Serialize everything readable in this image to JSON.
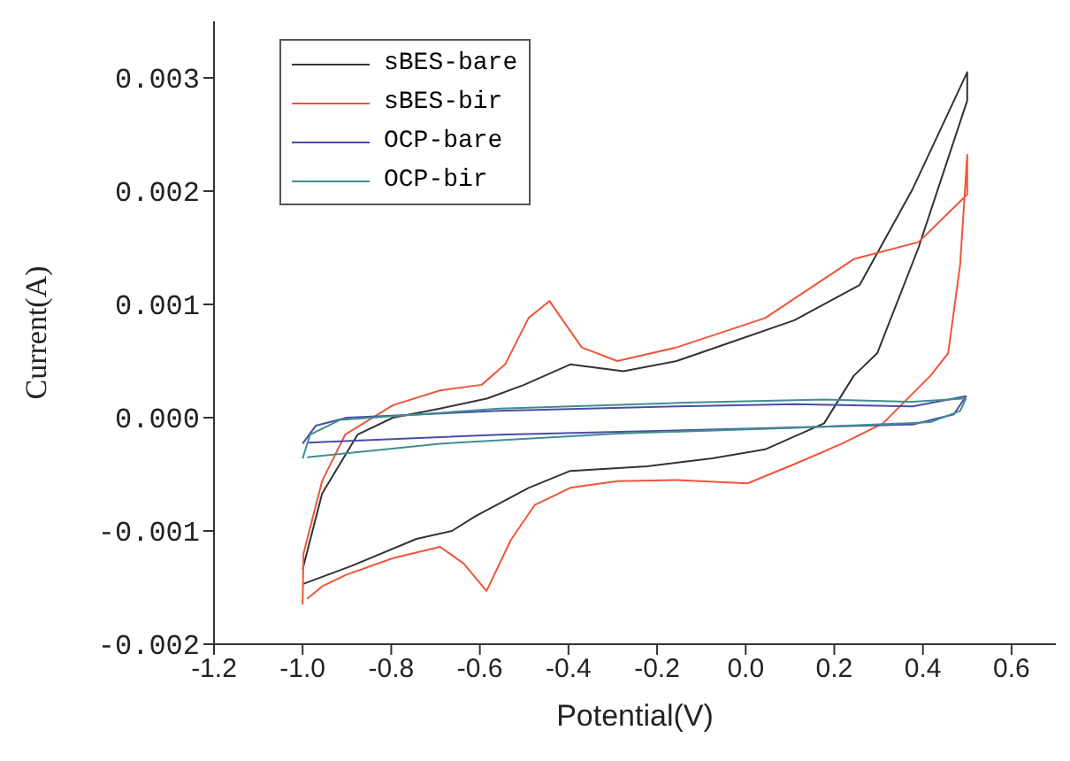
{
  "chart_data": {
    "type": "line",
    "xlabel": "Potential(V)",
    "ylabel": "Current(A)",
    "xlim": [
      -1.2,
      0.7
    ],
    "ylim": [
      -0.002,
      0.0035
    ],
    "xticks": [
      -1.2,
      {
        "value": -1,
        "label": "-1.0"
      },
      -0.8,
      -0.6,
      -0.4,
      -0.2,
      {
        "value": 0,
        "label": "0.0"
      },
      0.2,
      0.4,
      0.6
    ],
    "yticks": [
      -0.002,
      -0.001,
      {
        "value": 0,
        "label": "0.000"
      },
      0.001,
      0.002,
      0.003
    ],
    "grid": false,
    "legend": "top left",
    "marker": "none",
    "line_style": "solid",
    "series": [
      {
        "name": "sBES-bare",
        "color": "#333333",
        "x": [
          -1.0,
          -0.956,
          -0.876,
          -0.796,
          -0.69,
          -0.583,
          -0.5,
          -0.396,
          -0.276,
          -0.156,
          -0.023,
          0.11,
          0.257,
          0.377,
          0.5,
          0.5,
          0.39,
          0.297,
          0.244,
          0.177,
          0.044,
          -0.076,
          -0.223,
          -0.396,
          -0.49,
          -0.61,
          -0.663,
          -0.743,
          -0.89,
          -1.0
        ],
        "values": [
          -0.00134,
          -0.00067,
          -0.00015,
          0.0,
          8e-05,
          0.00017,
          0.00029,
          0.00047,
          0.00041,
          0.0005,
          0.00068,
          0.00086,
          0.00117,
          0.00202,
          0.00305,
          0.0028,
          0.0015,
          0.00057,
          0.00037,
          -5e-05,
          -0.00028,
          -0.00036,
          -0.00043,
          -0.00047,
          -0.00062,
          -0.00087,
          -0.001,
          -0.00107,
          -0.00131,
          -0.00147
        ]
      },
      {
        "name": "sBES-bir",
        "color": "#f0553a",
        "x": [
          -1.0,
          -0.998,
          -0.956,
          -0.904,
          -0.796,
          -0.69,
          -0.596,
          -0.543,
          -0.49,
          -0.443,
          -0.37,
          -0.29,
          -0.156,
          0.044,
          0.244,
          0.39,
          0.5,
          0.5,
          0.484,
          0.457,
          0.417,
          0.31,
          0.217,
          0.11,
          0.004,
          -0.156,
          -0.29,
          -0.396,
          -0.476,
          -0.53,
          -0.585,
          -0.636,
          -0.69,
          -0.796,
          -0.903,
          -0.956,
          -0.99
        ],
        "values": [
          -0.00165,
          -0.0012,
          -0.00056,
          -0.00015,
          0.00011,
          0.00024,
          0.00029,
          0.00047,
          0.00088,
          0.00103,
          0.00062,
          0.0005,
          0.00062,
          0.00088,
          0.0014,
          0.00155,
          0.00197,
          0.00232,
          0.00135,
          0.00057,
          0.00037,
          -5e-05,
          -0.00023,
          -0.00041,
          -0.00058,
          -0.00055,
          -0.00056,
          -0.00062,
          -0.00077,
          -0.00108,
          -0.00153,
          -0.00129,
          -0.00114,
          -0.00124,
          -0.00139,
          -0.00149,
          -0.0016
        ]
      },
      {
        "name": "OCP-bare",
        "color": "#4c4ca8",
        "x": [
          -1.0,
          -0.97,
          -0.9,
          -0.556,
          -0.156,
          0.11,
          0.377,
          0.497,
          0.47,
          0.377,
          -0.023,
          -0.556,
          -0.99
        ],
        "values": [
          -0.00023,
          -7e-05,
          0.0,
          6e-05,
          0.0001,
          0.00012,
          0.0001,
          0.00019,
          3e-05,
          -6e-05,
          -0.0001,
          -0.00015,
          -0.00022
        ]
      },
      {
        "name": "OCP-bir",
        "color": "#3f8f8f",
        "x": [
          -1.0,
          -0.983,
          -0.916,
          -0.556,
          -0.156,
          0.177,
          0.377,
          0.497,
          0.484,
          0.417,
          0.11,
          -0.29,
          -0.69,
          -0.99
        ],
        "values": [
          -0.00036,
          -0.00015,
          -2e-05,
          8e-05,
          0.00013,
          0.00016,
          0.00014,
          0.00017,
          6e-05,
          -4e-05,
          -9e-05,
          -0.00014,
          -0.00023,
          -0.00035
        ]
      }
    ]
  }
}
